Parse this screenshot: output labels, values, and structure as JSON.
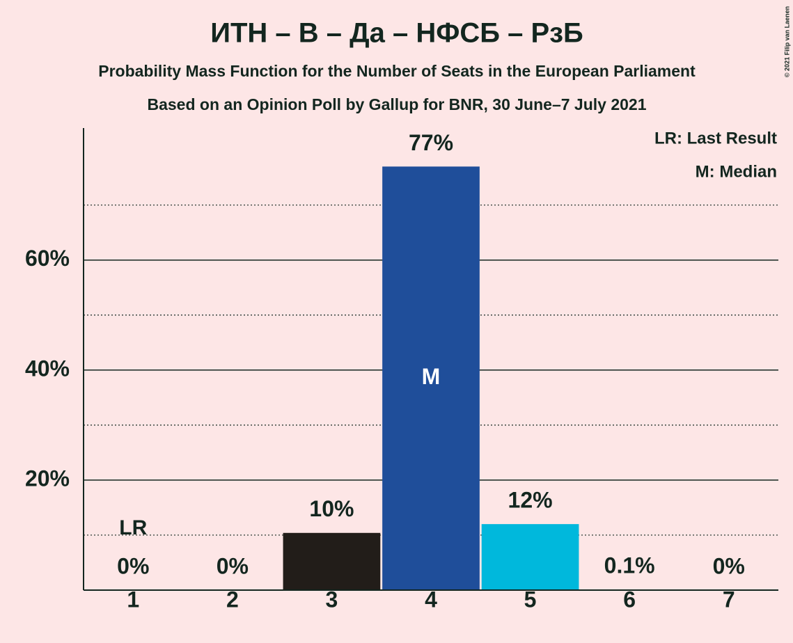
{
  "chart_data": {
    "type": "bar",
    "title": "ИТН – В – Да – НФСБ – РзБ",
    "subtitles": [
      "Probability Mass Function for the Number of Seats in the European Parliament",
      "Based on an Opinion Poll by Gallup for BNR, 30 June–7 July 2021"
    ],
    "categories": [
      "1",
      "2",
      "3",
      "4",
      "5",
      "6",
      "7"
    ],
    "values": [
      0,
      0,
      10.4,
      77,
      12,
      0.1,
      0
    ],
    "value_labels": [
      "0%",
      "0%",
      "10%",
      "77%",
      "12%",
      "0.1%",
      "0%"
    ],
    "colors": [
      null,
      null,
      "#221d19",
      "#1f4e9a",
      "#00b8dc",
      null,
      null
    ],
    "ylim": [
      0,
      84
    ],
    "yticks": [
      {
        "value": 20,
        "label": "20%"
      },
      {
        "value": 40,
        "label": "40%"
      },
      {
        "value": 60,
        "label": "60%"
      }
    ],
    "minor_grid": [
      10,
      30,
      50,
      70
    ],
    "last_result": {
      "label": "LR",
      "category": "1"
    },
    "median": {
      "label": "M",
      "category": "4"
    },
    "legend": [
      "LR: Last Result",
      "M: Median"
    ],
    "copyright": "© 2021 Filip van Laenen"
  }
}
